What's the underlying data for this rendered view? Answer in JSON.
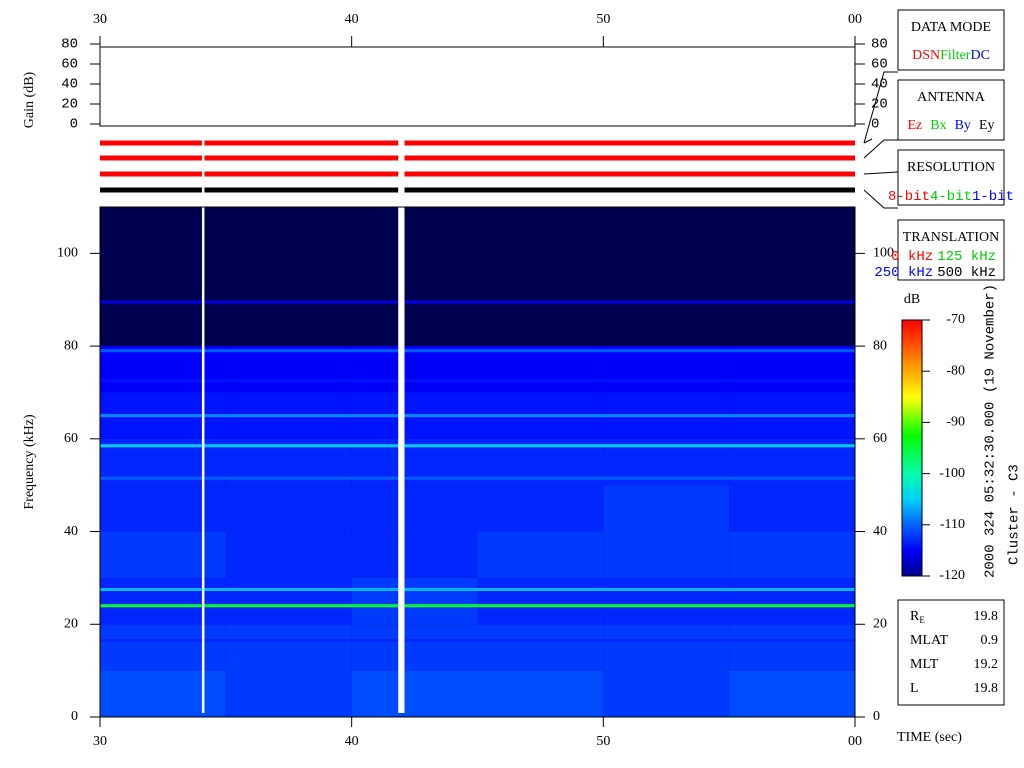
{
  "chart_data": {
    "type": "spectrogram",
    "xlabel": "TIME (sec)",
    "ylabel": "Frequency (kHz)",
    "xlim": [
      30,
      60
    ],
    "xticks": [
      30,
      40,
      50,
      {
        "value": 60,
        "label": "00"
      }
    ],
    "ylim": [
      0,
      110
    ],
    "yticks": [
      0,
      20,
      40,
      60,
      80,
      100
    ],
    "x_edges": [
      30,
      35,
      40,
      45,
      50,
      55,
      60
    ],
    "y_edges": [
      0,
      10,
      20,
      30,
      40,
      50,
      60,
      70,
      80,
      90,
      100,
      110
    ],
    "z": [
      [
        -111,
        -112,
        -111,
        -111,
        -112,
        -111
      ],
      [
        -112,
        -112,
        -112,
        -112,
        -112,
        -112
      ],
      [
        -113,
        -113,
        -112,
        -113,
        -113,
        -113
      ],
      [
        -112,
        -113,
        -113,
        -112,
        -112,
        -112
      ],
      [
        -113,
        -113,
        -113,
        -113,
        -112,
        -113
      ],
      [
        -113,
        -113,
        -113,
        -113,
        -113,
        -113
      ],
      [
        -114,
        -114,
        -114,
        -114,
        -114,
        -114
      ],
      [
        -115,
        -115,
        -115,
        -115,
        -115,
        -115
      ],
      [
        null,
        null,
        null,
        null,
        null,
        null
      ],
      [
        null,
        null,
        null,
        null,
        null,
        null
      ],
      [
        null,
        null,
        null,
        null,
        null,
        null
      ]
    ],
    "lines": [
      {
        "frequency": 89.5,
        "value": -116
      },
      {
        "frequency": 79,
        "value": -110
      },
      {
        "frequency": 72.5,
        "value": -114
      },
      {
        "frequency": 65,
        "value": -108
      },
      {
        "frequency": 58.5,
        "value": -105
      },
      {
        "frequency": 51.5,
        "value": -110
      },
      {
        "frequency": 27.5,
        "value": -106
      },
      {
        "frequency": 24,
        "value": -94
      },
      {
        "frequency": 16.5,
        "value": -113
      }
    ],
    "data_gaps": [
      [
        34.05,
        34.15
      ],
      [
        41.85,
        42.1
      ]
    ],
    "background": "#000050",
    "colorbar": {
      "label": "dB",
      "zlim": [
        -120,
        -70
      ],
      "zticks": [
        -70,
        -80,
        -90,
        -100,
        -110,
        -120
      ]
    },
    "gain": {
      "ylabel": "Gain (dB)",
      "ylim": [
        0,
        80
      ],
      "yticks": [
        0,
        20,
        40,
        60,
        80
      ]
    },
    "mode_bars": [
      "#ff0000",
      "#ff0000",
      "#ff0000",
      "#000000"
    ],
    "legend_panels": [
      {
        "title": "DATA MODE",
        "items": [
          {
            "label": "DSN",
            "color": "#ff0000"
          },
          {
            "label": "Filter",
            "color": "#00d000"
          },
          {
            "label": "DC",
            "color": "#0000ff"
          }
        ]
      },
      {
        "title": "ANTENNA",
        "items": [
          {
            "label": "Ez",
            "color": "#ff0000"
          },
          {
            "label": "Bx",
            "color": "#00d000"
          },
          {
            "label": "By",
            "color": "#0000ff"
          },
          {
            "label": "Ey",
            "color": "#000000"
          }
        ]
      },
      {
        "title": "RESOLUTION",
        "items": [
          {
            "label": "8-bit",
            "color": "#ff0000"
          },
          {
            "label": "4-bit",
            "color": "#00d000"
          },
          {
            "label": "1-bit",
            "color": "#0000ff"
          }
        ]
      },
      {
        "title": "TRANSLATION",
        "items": [
          {
            "label": "0 kHz",
            "color": "#ff0000"
          },
          {
            "label": "125 kHz",
            "color": "#00d000"
          },
          {
            "label": "250 kHz",
            "color": "#0000ff"
          },
          {
            "label": "500 kHz",
            "color": "#000000"
          }
        ]
      }
    ],
    "side_text": [
      "2000 324 05:32:30.000 (19 November)",
      "Cluster - C3"
    ],
    "info": [
      {
        "label": "R",
        "subscript": "E",
        "value": 19.8
      },
      {
        "label": "MLAT",
        "value": 0.9
      },
      {
        "label": "MLT",
        "value": 19.2
      },
      {
        "label": "L",
        "value": 19.8
      }
    ]
  }
}
